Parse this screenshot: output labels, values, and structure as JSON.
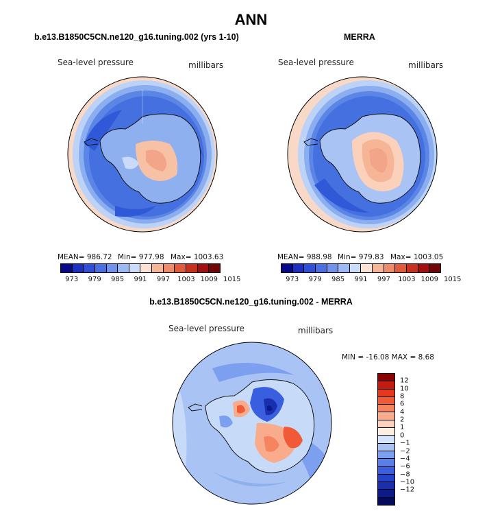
{
  "title": "ANN",
  "panels": [
    {
      "title": "b.e13.B1850C5CN.ne120_g16.tuning.002 (yrs 1-10)",
      "variable": "Sea-level pressure",
      "units": "millibars",
      "mean": "MEAN= 986.72",
      "min": "Min= 977.98",
      "max": "Max= 1003.63"
    },
    {
      "title": "MERRA",
      "variable": "Sea-level pressure",
      "units": "millibars",
      "mean": "MEAN= 988.98",
      "min": "Min= 979.83",
      "max": "Max= 1003.05"
    },
    {
      "title": "b.e13.B1850C5CN.ne120_g16.tuning.002 - MERRA",
      "variable": "Sea-level pressure",
      "units": "millibars",
      "minmax": "MIN = -16.08 MAX =   8.68"
    }
  ],
  "colorbar_main": {
    "colors": [
      "#08088a",
      "#1c2fc0",
      "#2f4fd6",
      "#4a6fe3",
      "#6f93ec",
      "#9bb9f3",
      "#c9dcf9",
      "#fbe2d4",
      "#f7b598",
      "#f08b67",
      "#e35a3a",
      "#c9301e",
      "#a30f0f",
      "#730505"
    ],
    "tick_labels": [
      "973",
      "979",
      "985",
      "991",
      "997",
      "1003",
      "1009",
      "1015"
    ]
  },
  "colorbar_diff": {
    "colors": [
      "#8b0000",
      "#c21b12",
      "#e4381f",
      "#f05a37",
      "#f58560",
      "#f9ac8c",
      "#fbd1bb",
      "#fdeee4",
      "#d5e4fb",
      "#a9c4f4",
      "#7c9ff0",
      "#5a7fe7",
      "#3a5ee0",
      "#2542c9",
      "#1a2fb0",
      "#0b1b8a",
      "#050a5c"
    ],
    "tick_labels": [
      "12",
      "10",
      "8",
      "6",
      "4",
      "2",
      "1",
      "0",
      "−1",
      "−2",
      "−4",
      "−6",
      "−8",
      "−10",
      "−12"
    ]
  }
}
